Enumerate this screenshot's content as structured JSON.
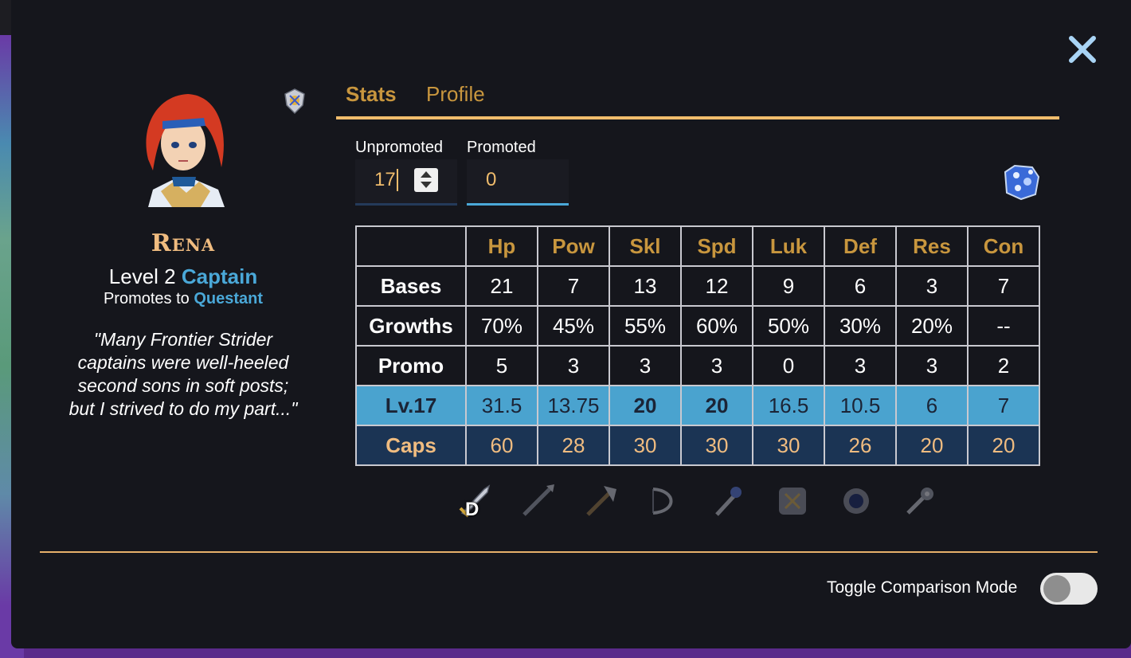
{
  "modal": {
    "close_icon": "close-icon"
  },
  "unit": {
    "name": "Rena",
    "level_prefix": "Level 2",
    "class": "Captain",
    "promotes_prefix": "Promotes to",
    "promotes_class": "Questant",
    "quote": "\"Many Frontier Strider captains were well-heeled second sons in soft posts; but I strived to do my part...\"",
    "portrait_icon": "character-portrait",
    "crest_icon": "crest-icon"
  },
  "tabs": [
    {
      "label": "Stats",
      "active": true
    },
    {
      "label": "Profile",
      "active": false
    }
  ],
  "inputs": {
    "unpromoted_label": "Unpromoted",
    "unpromoted_value": "17",
    "promoted_label": "Promoted",
    "promoted_value": "0"
  },
  "stats_table": {
    "columns": [
      "Hp",
      "Pow",
      "Skl",
      "Spd",
      "Luk",
      "Def",
      "Res",
      "Con"
    ],
    "rows": [
      {
        "label": "Bases",
        "values": [
          "21",
          "7",
          "13",
          "12",
          "9",
          "6",
          "3",
          "7"
        ]
      },
      {
        "label": "Growths",
        "values": [
          "70%",
          "45%",
          "55%",
          "60%",
          "50%",
          "30%",
          "20%",
          "--"
        ]
      },
      {
        "label": "Promo",
        "values": [
          "5",
          "3",
          "3",
          "3",
          "0",
          "3",
          "3",
          "2"
        ]
      },
      {
        "label": "Lv.17",
        "values": [
          "31.5",
          "13.75",
          "20",
          "20",
          "16.5",
          "10.5",
          "6",
          "7"
        ],
        "maxed": [
          false,
          false,
          true,
          true,
          false,
          false,
          false,
          false
        ]
      },
      {
        "label": "Caps",
        "values": [
          "60",
          "28",
          "30",
          "30",
          "30",
          "26",
          "20",
          "20"
        ]
      }
    ]
  },
  "weapons": [
    {
      "icon": "sword-icon",
      "rank": "D",
      "active": true
    },
    {
      "icon": "lance-icon",
      "rank": "",
      "active": false
    },
    {
      "icon": "axe-icon",
      "rank": "",
      "active": false
    },
    {
      "icon": "bow-icon",
      "rank": "",
      "active": false
    },
    {
      "icon": "staff-icon",
      "rank": "",
      "active": false
    },
    {
      "icon": "anima-icon",
      "rank": "",
      "active": false
    },
    {
      "icon": "dark-icon",
      "rank": "",
      "active": false
    },
    {
      "icon": "light-icon",
      "rank": "",
      "active": false
    }
  ],
  "gem_icon": "gem-icon",
  "footer": {
    "toggle_label": "Toggle Comparison Mode",
    "toggle_on": false
  },
  "colors": {
    "accent_gold": "#c8963e",
    "accent_blue": "#4aa8d8",
    "name_peach": "#f0bc80",
    "lv_row_bg": "#4aa3cf",
    "caps_row_bg": "#1b3454"
  }
}
